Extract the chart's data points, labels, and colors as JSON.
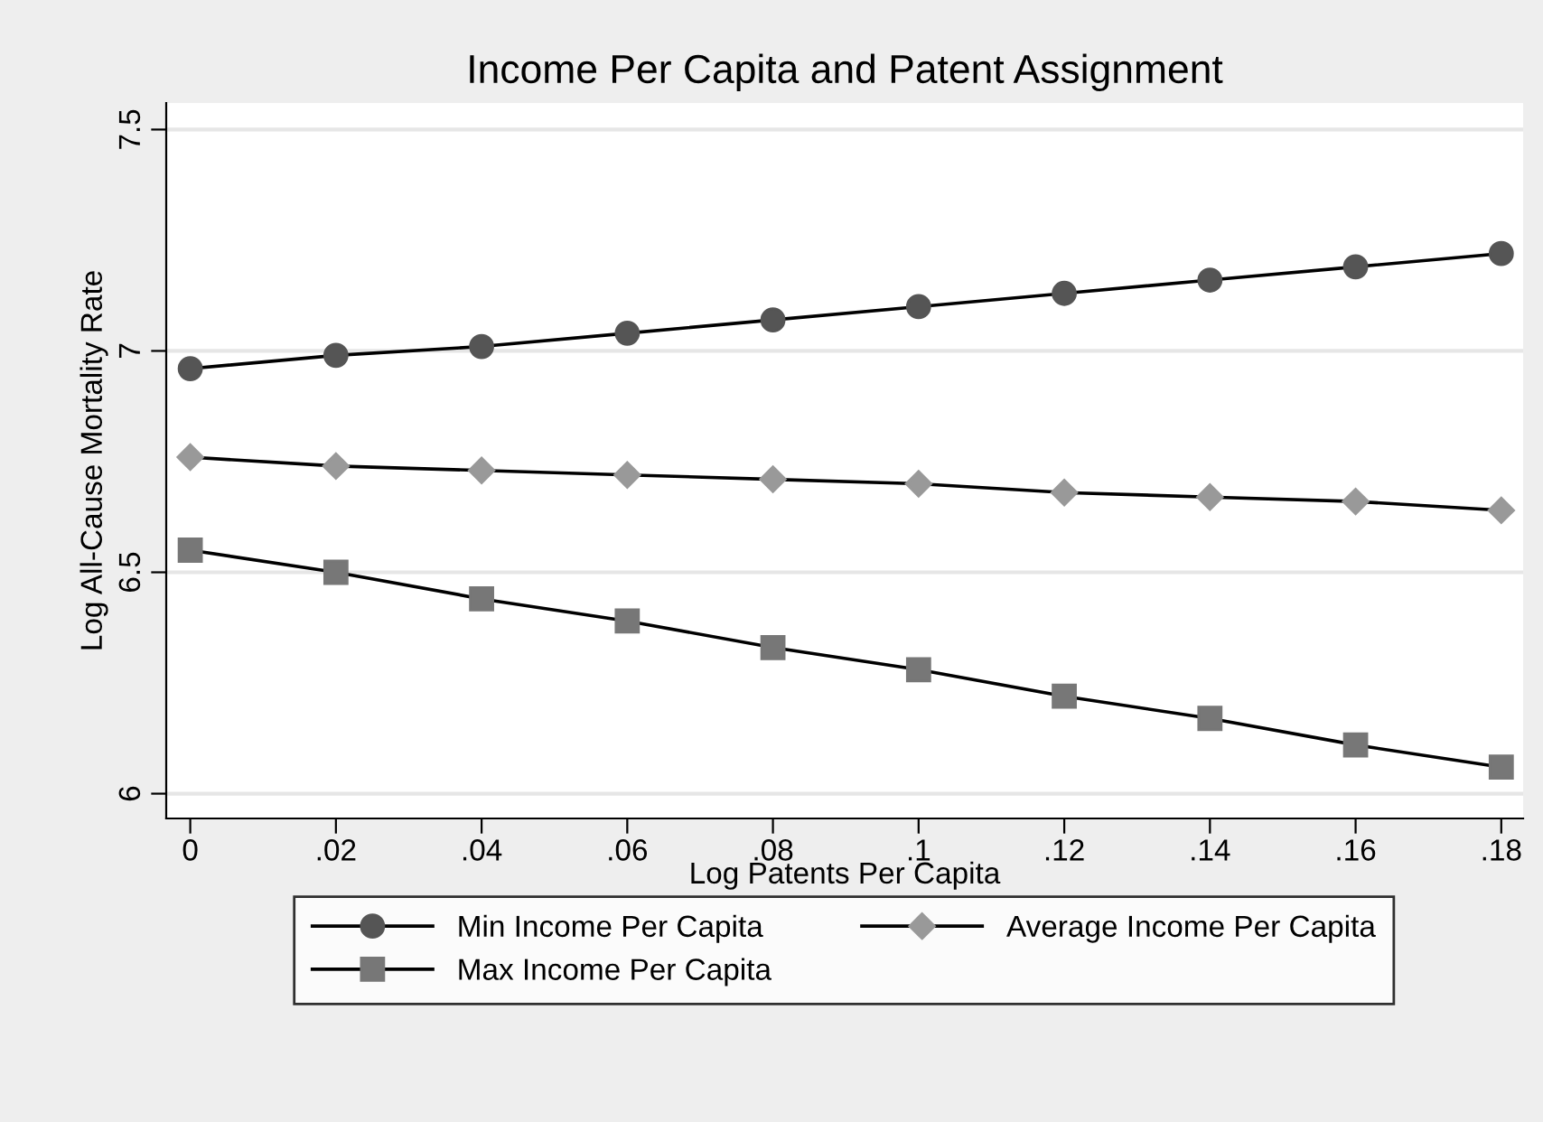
{
  "chart_data": {
    "type": "line",
    "title": "Income Per Capita and Patent Assignment",
    "xlabel": "Log Patents Per Capita",
    "ylabel": "Log All-Cause Mortality Rate",
    "x": [
      0,
      0.02,
      0.04,
      0.06,
      0.08,
      0.1,
      0.12,
      0.14,
      0.16,
      0.18
    ],
    "series": [
      {
        "name": "Min Income Per Capita",
        "color": "#555555",
        "marker": "circle",
        "values": [
          6.96,
          6.99,
          7.01,
          7.04,
          7.07,
          7.1,
          7.13,
          7.16,
          7.19,
          7.22
        ]
      },
      {
        "name": "Average Income Per Capita",
        "color": "#999999",
        "marker": "diamond",
        "values": [
          6.76,
          6.74,
          6.73,
          6.72,
          6.71,
          6.7,
          6.68,
          6.67,
          6.66,
          6.64
        ]
      },
      {
        "name": "Max Income Per Capita",
        "color": "#777777",
        "marker": "square",
        "values": [
          6.55,
          6.5,
          6.44,
          6.39,
          6.33,
          6.28,
          6.22,
          6.17,
          6.11,
          6.06
        ]
      }
    ],
    "xlim": [
      -0.0033,
      0.183
    ],
    "ylim": [
      5.944,
      7.56
    ],
    "xticks": [
      0,
      {
        "value": 0.02,
        "label": ".02"
      },
      {
        "value": 0.04,
        "label": ".04"
      },
      {
        "value": 0.06,
        "label": ".06"
      },
      {
        "value": 0.08,
        "label": ".08"
      },
      {
        "value": 0.1,
        "label": ".1"
      },
      {
        "value": 0.12,
        "label": ".12"
      },
      {
        "value": 0.14,
        "label": ".14"
      },
      {
        "value": 0.16,
        "label": ".16"
      },
      {
        "value": 0.18,
        "label": ".18"
      }
    ],
    "yticks": [
      6,
      6.5,
      7,
      7.5
    ],
    "grid": "y",
    "legend": "bottom",
    "line_style": "solid"
  }
}
